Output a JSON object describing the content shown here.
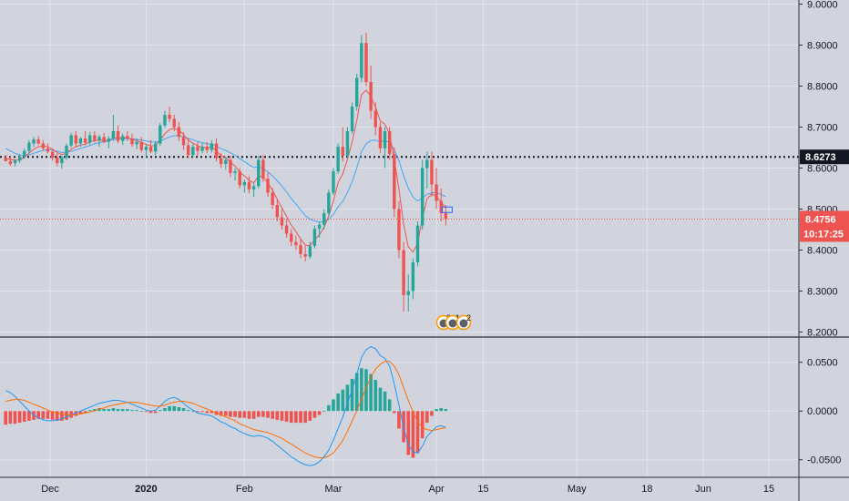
{
  "chart_data": {
    "type": "candlestick",
    "title": "",
    "price_panel": {
      "y_ticks": [
        "9.0000",
        "8.9000",
        "8.8000",
        "8.7000",
        "8.6000",
        "8.5000",
        "8.4000",
        "8.3000",
        "8.2000"
      ],
      "y_tick_values": [
        9.0,
        8.9,
        8.8,
        8.7,
        8.6,
        8.5,
        8.4,
        8.3,
        8.2
      ],
      "ylim": [
        8.19,
        9.01
      ],
      "reference_line": {
        "label": "8.6273",
        "value": 8.6273,
        "color": "#131722"
      },
      "last_price": {
        "label": "8.4756",
        "value": 8.4756,
        "color": "#ef5350"
      },
      "countdown": "10:17:25",
      "candles": [
        [
          8.625,
          8.632,
          8.616,
          8.617
        ],
        [
          8.617,
          8.63,
          8.605,
          8.61
        ],
        [
          8.612,
          8.622,
          8.604,
          8.618
        ],
        [
          8.618,
          8.634,
          8.612,
          8.628
        ],
        [
          8.628,
          8.648,
          8.622,
          8.642
        ],
        [
          8.642,
          8.668,
          8.636,
          8.662
        ],
        [
          8.66,
          8.676,
          8.652,
          8.67
        ],
        [
          8.67,
          8.678,
          8.656,
          8.66
        ],
        [
          8.66,
          8.668,
          8.642,
          8.648
        ],
        [
          8.648,
          8.66,
          8.636,
          8.64
        ],
        [
          8.64,
          8.648,
          8.618,
          8.625
        ],
        [
          8.626,
          8.636,
          8.604,
          8.612
        ],
        [
          8.612,
          8.63,
          8.598,
          8.626
        ],
        [
          8.626,
          8.66,
          8.62,
          8.655
        ],
        [
          8.655,
          8.686,
          8.65,
          8.68
        ],
        [
          8.68,
          8.69,
          8.652,
          8.66
        ],
        [
          8.66,
          8.676,
          8.652,
          8.672
        ],
        [
          8.672,
          8.69,
          8.656,
          8.662
        ],
        [
          8.662,
          8.688,
          8.656,
          8.68
        ],
        [
          8.68,
          8.69,
          8.662,
          8.668
        ],
        [
          8.668,
          8.682,
          8.652,
          8.676
        ],
        [
          8.676,
          8.686,
          8.66,
          8.664
        ],
        [
          8.664,
          8.678,
          8.648,
          8.672
        ],
        [
          8.672,
          8.73,
          8.666,
          8.69
        ],
        [
          8.69,
          8.704,
          8.66,
          8.666
        ],
        [
          8.666,
          8.684,
          8.656,
          8.678
        ],
        [
          8.678,
          8.69,
          8.666,
          8.672
        ],
        [
          8.672,
          8.684,
          8.652,
          8.658
        ],
        [
          8.658,
          8.672,
          8.646,
          8.664
        ],
        [
          8.664,
          8.676,
          8.638,
          8.644
        ],
        [
          8.644,
          8.658,
          8.626,
          8.652
        ],
        [
          8.652,
          8.668,
          8.636,
          8.64
        ],
        [
          8.64,
          8.666,
          8.632,
          8.66
        ],
        [
          8.66,
          8.71,
          8.654,
          8.704
        ],
        [
          8.704,
          8.74,
          8.698,
          8.73
        ],
        [
          8.73,
          8.75,
          8.712,
          8.72
        ],
        [
          8.72,
          8.73,
          8.69,
          8.7
        ],
        [
          8.7,
          8.712,
          8.666,
          8.676
        ],
        [
          8.676,
          8.688,
          8.644,
          8.656
        ],
        [
          8.656,
          8.672,
          8.624,
          8.632
        ],
        [
          8.632,
          8.66,
          8.626,
          8.652
        ],
        [
          8.652,
          8.664,
          8.63,
          8.642
        ],
        [
          8.642,
          8.66,
          8.636,
          8.652
        ],
        [
          8.652,
          8.664,
          8.636,
          8.644
        ],
        [
          8.644,
          8.668,
          8.638,
          8.66
        ],
        [
          8.66,
          8.672,
          8.616,
          8.624
        ],
        [
          8.624,
          8.636,
          8.6,
          8.61
        ],
        [
          8.61,
          8.628,
          8.596,
          8.62
        ],
        [
          8.62,
          8.63,
          8.578,
          8.588
        ],
        [
          8.588,
          8.6,
          8.57,
          8.592
        ],
        [
          8.592,
          8.6,
          8.55,
          8.558
        ],
        [
          8.558,
          8.572,
          8.54,
          8.566
        ],
        [
          8.566,
          8.58,
          8.538,
          8.548
        ],
        [
          8.548,
          8.562,
          8.53,
          8.556
        ],
        [
          8.556,
          8.63,
          8.55,
          8.62
        ],
        [
          8.62,
          8.632,
          8.566,
          8.574
        ],
        [
          8.574,
          8.59,
          8.53,
          8.54
        ],
        [
          8.54,
          8.552,
          8.5,
          8.51
        ],
        [
          8.51,
          8.524,
          8.47,
          8.48
        ],
        [
          8.48,
          8.5,
          8.45,
          8.46
        ],
        [
          8.46,
          8.476,
          8.43,
          8.44
        ],
        [
          8.44,
          8.452,
          8.41,
          8.42
        ],
        [
          8.42,
          8.436,
          8.4,
          8.412
        ],
        [
          8.412,
          8.426,
          8.38,
          8.39
        ],
        [
          8.39,
          8.41,
          8.372,
          8.384
        ],
        [
          8.384,
          8.42,
          8.378,
          8.41
        ],
        [
          8.41,
          8.46,
          8.404,
          8.452
        ],
        [
          8.452,
          8.47,
          8.43,
          8.462
        ],
        [
          8.462,
          8.5,
          8.45,
          8.49
        ],
        [
          8.49,
          8.548,
          8.484,
          8.54
        ],
        [
          8.54,
          8.6,
          8.534,
          8.592
        ],
        [
          8.592,
          8.66,
          8.586,
          8.652
        ],
        [
          8.652,
          8.7,
          8.616,
          8.63
        ],
        [
          8.63,
          8.7,
          8.624,
          8.69
        ],
        [
          8.69,
          8.76,
          8.684,
          8.75
        ],
        [
          8.75,
          8.83,
          8.74,
          8.82
        ],
        [
          8.82,
          8.925,
          8.81,
          8.905
        ],
        [
          8.905,
          8.93,
          8.8,
          8.81
        ],
        [
          8.81,
          8.85,
          8.72,
          8.74
        ],
        [
          8.74,
          8.76,
          8.68,
          8.7
        ],
        [
          8.7,
          8.712,
          8.636,
          8.648
        ],
        [
          8.648,
          8.7,
          8.6,
          8.69
        ],
        [
          8.69,
          8.7,
          8.62,
          8.634
        ],
        [
          8.634,
          8.65,
          8.48,
          8.5
        ],
        [
          8.5,
          8.52,
          8.38,
          8.4
        ],
        [
          8.4,
          8.42,
          8.25,
          8.29
        ],
        [
          8.29,
          8.34,
          8.25,
          8.3
        ],
        [
          8.3,
          8.38,
          8.28,
          8.37
        ],
        [
          8.37,
          8.47,
          8.36,
          8.46
        ],
        [
          8.46,
          8.62,
          8.45,
          8.6
        ],
        [
          8.6,
          8.64,
          8.55,
          8.62
        ],
        [
          8.62,
          8.64,
          8.53,
          8.56
        ],
        [
          8.56,
          8.6,
          8.5,
          8.52
        ],
        [
          8.52,
          8.55,
          8.47,
          8.49
        ],
        [
          8.49,
          8.51,
          8.46,
          8.4756
        ]
      ],
      "ma_fast": [
        8.624,
        8.621,
        8.619,
        8.62,
        8.626,
        8.636,
        8.646,
        8.652,
        8.654,
        8.652,
        8.646,
        8.638,
        8.633,
        8.636,
        8.646,
        8.652,
        8.656,
        8.658,
        8.664,
        8.667,
        8.668,
        8.667,
        8.667,
        8.674,
        8.674,
        8.674,
        8.674,
        8.67,
        8.667,
        8.662,
        8.658,
        8.654,
        8.655,
        8.668,
        8.684,
        8.694,
        8.697,
        8.692,
        8.682,
        8.668,
        8.661,
        8.654,
        8.651,
        8.649,
        8.652,
        8.642,
        8.63,
        8.626,
        8.614,
        8.605,
        8.59,
        8.581,
        8.57,
        8.564,
        8.581,
        8.578,
        8.564,
        8.546,
        8.524,
        8.503,
        8.482,
        8.461,
        8.445,
        8.427,
        8.412,
        8.411,
        8.425,
        8.437,
        8.455,
        8.483,
        8.519,
        8.564,
        8.586,
        8.621,
        8.664,
        8.716,
        8.779,
        8.79,
        8.774,
        8.749,
        8.715,
        8.707,
        8.683,
        8.622,
        8.548,
        8.462,
        8.408,
        8.395,
        8.417,
        8.478,
        8.525,
        8.537,
        8.531,
        8.517,
        8.503
      ],
      "ma_slow": [
        8.648,
        8.642,
        8.636,
        8.632,
        8.63,
        8.632,
        8.636,
        8.64,
        8.643,
        8.645,
        8.644,
        8.641,
        8.638,
        8.638,
        8.641,
        8.644,
        8.648,
        8.651,
        8.655,
        8.659,
        8.662,
        8.664,
        8.666,
        8.67,
        8.671,
        8.672,
        8.672,
        8.671,
        8.67,
        8.668,
        8.666,
        8.664,
        8.663,
        8.666,
        8.671,
        8.676,
        8.679,
        8.679,
        8.676,
        8.672,
        8.669,
        8.665,
        8.662,
        8.659,
        8.658,
        8.653,
        8.647,
        8.643,
        8.637,
        8.631,
        8.623,
        8.616,
        8.608,
        8.601,
        8.603,
        8.599,
        8.591,
        8.581,
        8.569,
        8.556,
        8.541,
        8.526,
        8.512,
        8.498,
        8.484,
        8.475,
        8.471,
        8.468,
        8.469,
        8.475,
        8.487,
        8.505,
        8.519,
        8.54,
        8.567,
        8.6,
        8.64,
        8.659,
        8.667,
        8.668,
        8.664,
        8.666,
        8.663,
        8.645,
        8.618,
        8.581,
        8.551,
        8.529,
        8.52,
        8.527,
        8.536,
        8.54,
        8.54,
        8.536,
        8.53
      ],
      "markers": [
        {
          "label": "2"
        },
        {
          "label": "1"
        },
        {
          "label": "2"
        }
      ]
    },
    "macd_panel": {
      "y_ticks": [
        "0.0500",
        "0.0000",
        "-0.0500"
      ],
      "y_tick_values": [
        0.05,
        0.0,
        -0.05
      ],
      "ylim": [
        -0.068,
        0.075
      ],
      "histogram": [
        -0.014,
        -0.013,
        -0.013,
        -0.012,
        -0.011,
        -0.01,
        -0.009,
        -0.008,
        -0.008,
        -0.008,
        -0.009,
        -0.01,
        -0.01,
        -0.009,
        -0.007,
        -0.005,
        -0.003,
        -0.002,
        0.001,
        0.002,
        0.003,
        0.002,
        0.002,
        0.003,
        0.002,
        0.002,
        0.002,
        0.001,
        0.001,
        0.0,
        -0.001,
        -0.002,
        -0.002,
        0.001,
        0.003,
        0.005,
        0.005,
        0.004,
        0.003,
        0.001,
        0.0,
        -0.001,
        -0.001,
        -0.002,
        -0.002,
        -0.004,
        -0.005,
        -0.005,
        -0.006,
        -0.006,
        -0.007,
        -0.007,
        -0.008,
        -0.008,
        -0.006,
        -0.006,
        -0.007,
        -0.008,
        -0.009,
        -0.01,
        -0.011,
        -0.012,
        -0.012,
        -0.012,
        -0.012,
        -0.01,
        -0.007,
        -0.004,
        0.0,
        0.006,
        0.012,
        0.018,
        0.022,
        0.027,
        0.033,
        0.039,
        0.044,
        0.043,
        0.038,
        0.032,
        0.024,
        0.02,
        0.012,
        -0.002,
        -0.018,
        -0.032,
        -0.045,
        -0.048,
        -0.043,
        -0.028,
        -0.012,
        -0.005,
        0.002,
        0.003,
        0.002
      ],
      "macd_line": [
        0.021,
        0.019,
        0.015,
        0.01,
        0.005,
        0.0,
        -0.004,
        -0.007,
        -0.009,
        -0.01,
        -0.01,
        -0.009,
        -0.008,
        -0.006,
        -0.004,
        -0.002,
        0.0,
        0.002,
        0.004,
        0.006,
        0.008,
        0.009,
        0.01,
        0.011,
        0.011,
        0.01,
        0.009,
        0.007,
        0.005,
        0.003,
        0.001,
        0.0,
        0.001,
        0.005,
        0.01,
        0.013,
        0.014,
        0.012,
        0.008,
        0.004,
        0.001,
        -0.002,
        -0.003,
        -0.004,
        -0.005,
        -0.008,
        -0.011,
        -0.013,
        -0.016,
        -0.018,
        -0.021,
        -0.023,
        -0.025,
        -0.026,
        -0.025,
        -0.026,
        -0.028,
        -0.031,
        -0.035,
        -0.039,
        -0.043,
        -0.047,
        -0.05,
        -0.053,
        -0.055,
        -0.056,
        -0.055,
        -0.052,
        -0.047,
        -0.04,
        -0.03,
        -0.018,
        -0.006,
        0.008,
        0.022,
        0.038,
        0.055,
        0.063,
        0.066,
        0.064,
        0.057,
        0.054,
        0.046,
        0.028,
        0.006,
        -0.017,
        -0.034,
        -0.042,
        -0.043,
        -0.036,
        -0.026,
        -0.021,
        -0.016,
        -0.015,
        -0.017
      ],
      "signal_line": [
        0.01,
        0.011,
        0.012,
        0.012,
        0.011,
        0.009,
        0.007,
        0.005,
        0.003,
        0.001,
        -0.001,
        -0.002,
        -0.003,
        -0.004,
        -0.004,
        -0.004,
        -0.003,
        -0.002,
        -0.001,
        0.0,
        0.002,
        0.003,
        0.005,
        0.006,
        0.007,
        0.008,
        0.009,
        0.009,
        0.009,
        0.008,
        0.007,
        0.006,
        0.005,
        0.005,
        0.006,
        0.008,
        0.009,
        0.01,
        0.01,
        0.009,
        0.008,
        0.006,
        0.004,
        0.002,
        0.0,
        -0.002,
        -0.004,
        -0.006,
        -0.008,
        -0.01,
        -0.013,
        -0.015,
        -0.017,
        -0.019,
        -0.02,
        -0.021,
        -0.022,
        -0.024,
        -0.026,
        -0.028,
        -0.031,
        -0.034,
        -0.037,
        -0.04,
        -0.043,
        -0.045,
        -0.047,
        -0.048,
        -0.048,
        -0.046,
        -0.043,
        -0.037,
        -0.03,
        -0.021,
        -0.01,
        0.0,
        0.012,
        0.024,
        0.035,
        0.043,
        0.048,
        0.051,
        0.051,
        0.046,
        0.037,
        0.024,
        0.011,
        -0.001,
        -0.011,
        -0.017,
        -0.019,
        -0.02,
        -0.019,
        -0.018,
        -0.017
      ]
    },
    "x_axis": {
      "labels": [
        {
          "text": "Dec",
          "bold": false,
          "index": 9.5
        },
        {
          "text": "2020",
          "bold": true,
          "index": 30
        },
        {
          "text": "Feb",
          "bold": false,
          "index": 51
        },
        {
          "text": "Mar",
          "bold": false,
          "index": 70
        },
        {
          "text": "Apr",
          "bold": false,
          "index": 92
        },
        {
          "text": "15",
          "bold": false,
          "index": 102
        },
        {
          "text": "May",
          "bold": false,
          "index": 122
        },
        {
          "text": "18",
          "bold": false,
          "index": 137
        },
        {
          "text": "Jun",
          "bold": false,
          "index": 149
        },
        {
          "text": "15",
          "bold": false,
          "index": 163
        }
      ]
    },
    "colors": {
      "up": "#26a69a",
      "down": "#ef5350",
      "ma_fast": "#ef5350",
      "ma_slow": "#42a5f5",
      "macd_line": "#2196f3",
      "signal_line": "#ff6d00",
      "grid": "#dfe3ec",
      "background": "#d1d4dc"
    }
  }
}
